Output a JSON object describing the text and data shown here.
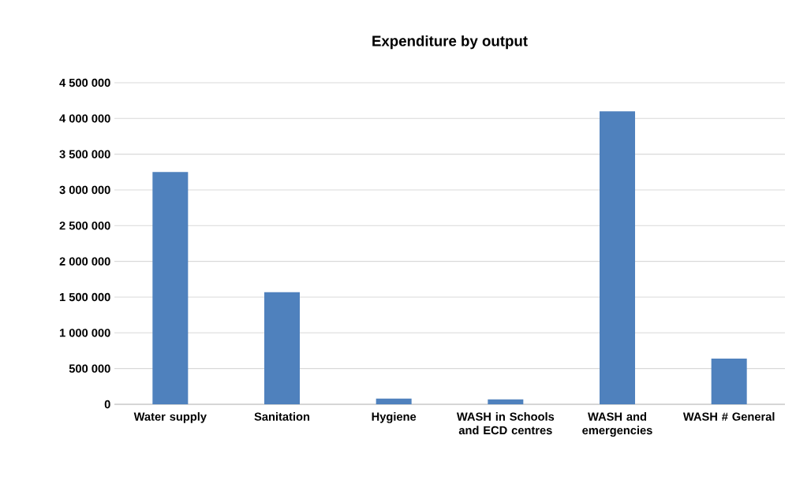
{
  "chart_data": {
    "type": "bar",
    "title": "Expenditure by output",
    "categories": [
      "Water supply",
      "Sanitation",
      "Hygiene",
      "WASH in Schools and ECD centres",
      "WASH and emergencies",
      "WASH # General"
    ],
    "values": [
      3250000,
      1570000,
      80000,
      70000,
      4100000,
      640000
    ],
    "color": "#4f81bd",
    "ylim": [
      0,
      4500000
    ],
    "yticks": [
      0,
      {
        "value": 500000,
        "label": "500 000"
      },
      {
        "value": 1000000,
        "label": "1 000 000"
      },
      {
        "value": 1500000,
        "label": "1 500 000"
      },
      {
        "value": 2000000,
        "label": "2 000 000"
      },
      {
        "value": 2500000,
        "label": "2 500 000"
      },
      {
        "value": 3000000,
        "label": "3 000 000"
      },
      {
        "value": 3500000,
        "label": "3 500 000"
      },
      {
        "value": 4000000,
        "label": "4 000 000"
      },
      {
        "value": 4500000,
        "label": "4 500 000"
      }
    ],
    "grid": "y"
  }
}
